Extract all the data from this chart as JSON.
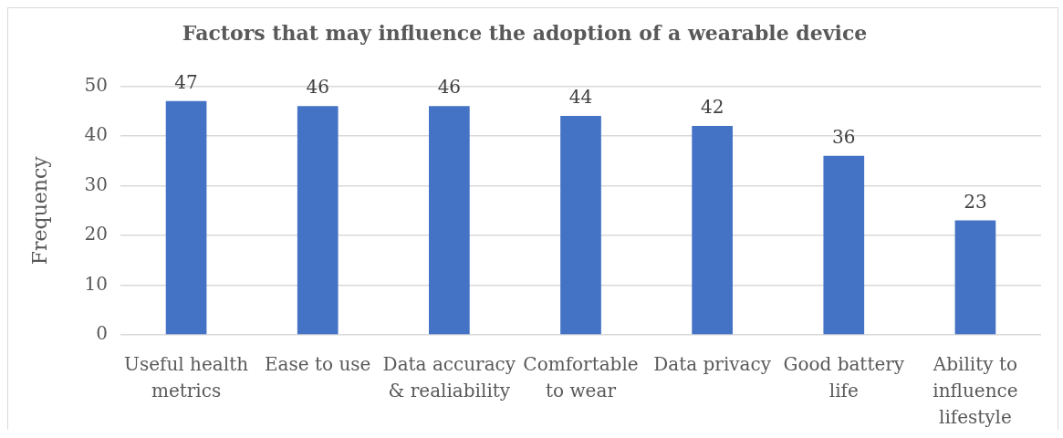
{
  "chart_data": {
    "type": "bar",
    "title": "Factors that may influence the adoption of a wearable device",
    "ylabel": "Frequency",
    "categories": [
      "Useful health metrics",
      "Ease to use",
      "Data accuracy & realiability",
      "Comfortable to wear",
      "Data privacy",
      "Good battery life",
      "Ability to influence lifestyle"
    ],
    "values": [
      47,
      46,
      46,
      44,
      42,
      36,
      23
    ],
    "color": "#4472c4",
    "ylim": [
      0,
      50
    ],
    "yticks": [
      0,
      10,
      20,
      30,
      40,
      50
    ],
    "grid": "y",
    "data_labels": true
  }
}
